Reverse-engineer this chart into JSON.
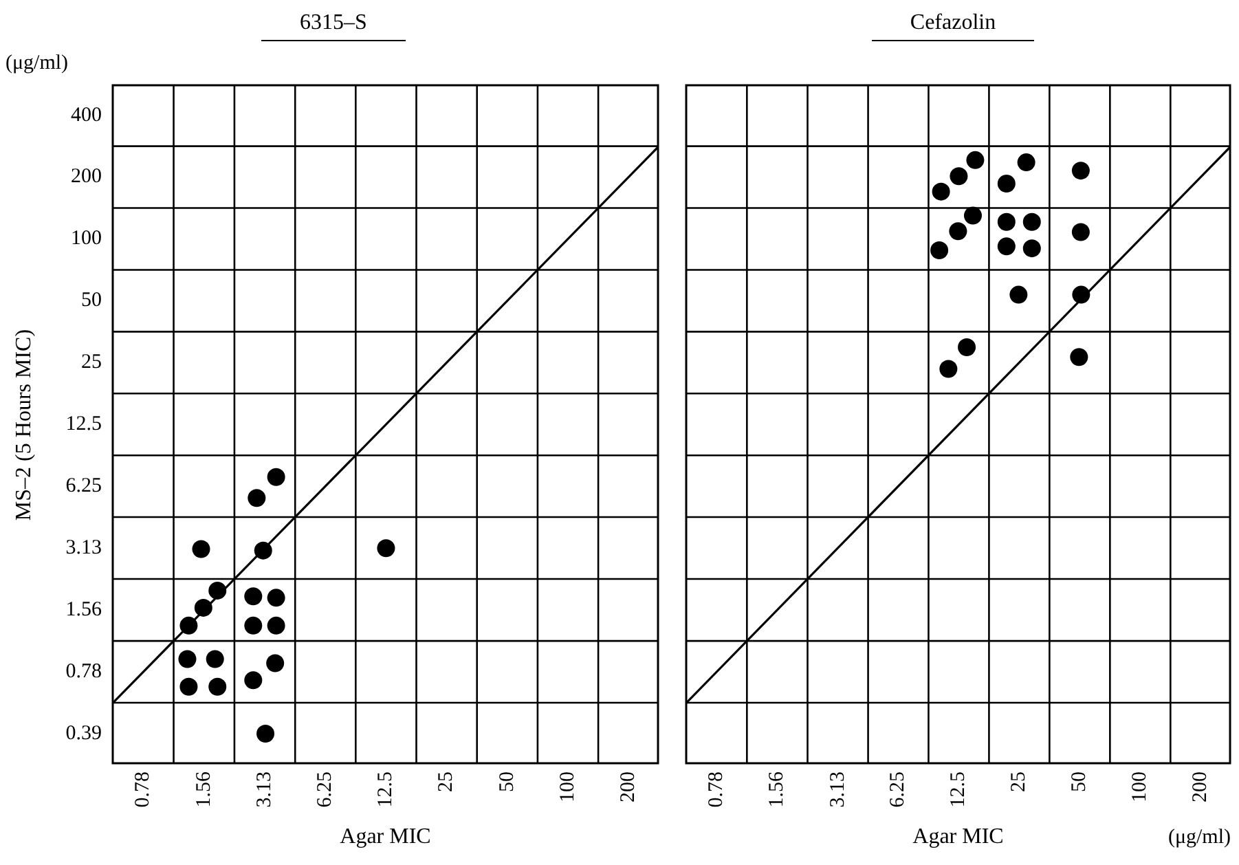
{
  "chart_data": [
    {
      "type": "scatter",
      "title": "6315–S",
      "xlabel": "Agar MIC",
      "ylabel": "MS–2 (5 Hours MIC)",
      "annotations": [
        "(μg/ml)"
      ],
      "xlim": [
        0.55,
        280
      ],
      "xticks": [
        0.78,
        1.56,
        3.13,
        6.25,
        12.5,
        25,
        50,
        100,
        200
      ],
      "ylim": [
        0.28,
        560
      ],
      "yticks": [
        0.39,
        0.78,
        1.56,
        3.13,
        6.25,
        12.5,
        25,
        50,
        100,
        200,
        400
      ],
      "log": "xy",
      "grid": true,
      "legend": false,
      "series": [
        {
          "type": "line",
          "color": "#000000",
          "marker": "none",
          "x": [
            0.55,
            280
          ],
          "values": [
            0.55,
            280
          ]
        },
        {
          "color": "#000000",
          "marker": "circle",
          "x": [
            3.56,
            2.85,
            1.51,
            3.07,
            12.5,
            1.82,
            1.55,
            1.31,
            2.74,
            3.56,
            2.74,
            3.56,
            1.29,
            1.77,
            1.31,
            1.82,
            3.52,
            2.74,
            3.15
          ],
          "values": [
            6.93,
            5.48,
            3.09,
            3.04,
            3.12,
            1.94,
            1.6,
            1.31,
            1.82,
            1.79,
            1.31,
            1.31,
            0.9,
            0.9,
            0.66,
            0.66,
            0.86,
            0.71,
            0.39
          ]
        }
      ]
    },
    {
      "type": "scatter",
      "title": "Cefazolin",
      "xlabel": "Agar MIC",
      "annotations": [
        "(μg/ml)"
      ],
      "xlim": [
        0.55,
        280
      ],
      "xticks": [
        0.78,
        1.56,
        3.13,
        6.25,
        12.5,
        25,
        50,
        100,
        200
      ],
      "ylim": [
        0.28,
        560
      ],
      "yticks": [
        0.39,
        0.78,
        1.56,
        3.13,
        6.25,
        12.5,
        25,
        50,
        100,
        200,
        400
      ],
      "log": "xy",
      "grid": true,
      "legend": false,
      "tick_labels": "x",
      "series": [
        {
          "type": "line",
          "color": "#000000",
          "marker": "none",
          "x": [
            0.55,
            280
          ],
          "values": [
            0.55,
            280
          ]
        },
        {
          "color": "#000000",
          "marker": "circle",
          "x": [
            15.1,
            12.5,
            10.2,
            27.1,
            21.6,
            50.6,
            14.7,
            12.4,
            10.0,
            21.6,
            28.9,
            21.6,
            28.9,
            50.6,
            24.8,
            50.8,
            13.7,
            11.1,
            49.6
          ],
          "values": [
            242,
            202,
            170,
            236,
            186,
            215,
            130,
            109,
            88,
            121,
            121,
            92,
            90,
            108,
            53.5,
            53.5,
            29.7,
            23.3,
            26.6
          ]
        }
      ]
    }
  ]
}
